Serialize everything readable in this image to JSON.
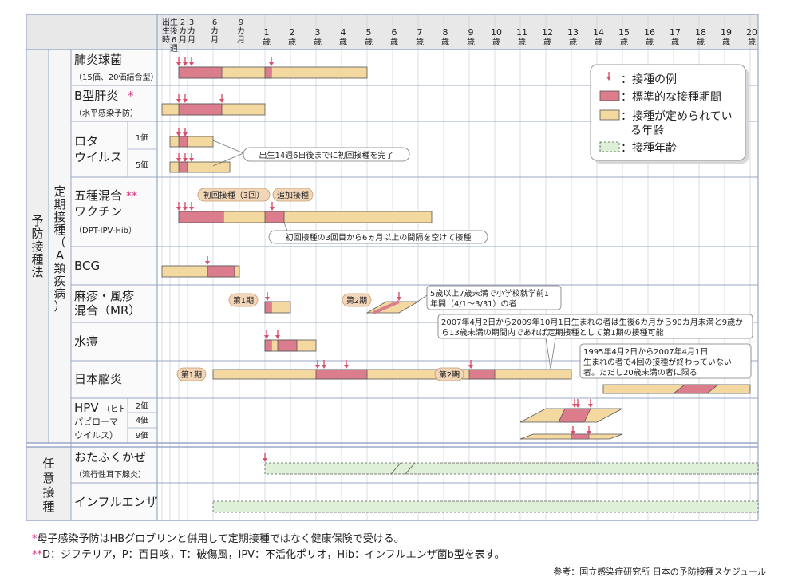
{
  "header": {
    "ages": [
      {
        "label": "出生時",
        "col": "birth"
      },
      {
        "label": "生後6週",
        "col": "w6"
      },
      {
        "label": "2カ月",
        "col": "m2"
      },
      {
        "label": "3カ月",
        "col": "m3"
      },
      {
        "label": "6カ月",
        "col": "m6"
      },
      {
        "label": "9カ月",
        "col": "m9"
      },
      {
        "label": "1歳",
        "col": "y1"
      },
      {
        "label": "2歳",
        "col": "y2"
      },
      {
        "label": "3歳",
        "col": "y3"
      },
      {
        "label": "4歳",
        "col": "y4"
      },
      {
        "label": "5歳",
        "col": "y5"
      },
      {
        "label": "6歳",
        "col": "y6"
      },
      {
        "label": "7歳",
        "col": "y7"
      },
      {
        "label": "8歳",
        "col": "y8"
      },
      {
        "label": "9歳",
        "col": "y9"
      },
      {
        "label": "10歳",
        "col": "y10"
      },
      {
        "label": "11歳",
        "col": "y11"
      },
      {
        "label": "12歳",
        "col": "y12"
      },
      {
        "label": "13歳",
        "col": "y13"
      },
      {
        "label": "14歳",
        "col": "y14"
      },
      {
        "label": "15歳",
        "col": "y15"
      },
      {
        "label": "16歳",
        "col": "y16"
      },
      {
        "label": "17歳",
        "col": "y17"
      },
      {
        "label": "18歳",
        "col": "y18"
      },
      {
        "label": "19歳",
        "col": "y19"
      },
      {
        "label": "20歳",
        "col": "y20"
      }
    ]
  },
  "groups": {
    "law": "予防接種法",
    "routine": "定期接種（A類疾病）",
    "voluntary": "任意接種"
  },
  "rows": {
    "pneumo": {
      "name": "肺炎球菌",
      "sub": "（15価、20価結合型）"
    },
    "hepb": {
      "name": "B型肝炎",
      "star": "*",
      "sub": "（水平感染予防）"
    },
    "rota": {
      "name": "ロタ\nウイルス",
      "sub1": "1価",
      "sub2": "5価"
    },
    "penta": {
      "name": "五種混合\nワクチン",
      "star": "**",
      "sub": "（DPT-IPV-Hib）"
    },
    "bcg": {
      "name": "BCG"
    },
    "mr": {
      "name": "麻疹・風疹\n混合（MR）"
    },
    "varicella": {
      "name": "水痘"
    },
    "je": {
      "name": "日本脳炎"
    },
    "hpv": {
      "name": "HPV",
      "name_small": "（ヒト",
      "name2": "パピローマ",
      "name3": "ウイルス）",
      "sub1": "2価",
      "sub2": "4価",
      "sub3": "9価"
    },
    "mumps": {
      "name": "おたふくかぜ",
      "sub": "（流行性耳下腺炎）"
    },
    "flu": {
      "name": "インフルエンザ"
    }
  },
  "legend": {
    "arrow": "：接種の例",
    "standard": "：標準的な接種期間",
    "defined": "：接種が定められている年齢",
    "age": "：接種年齢"
  },
  "callouts": {
    "rota": "出生14週6日後までに初回接種を完了",
    "penta_initial": "初回接種（3回）",
    "penta_booster": "追加接種",
    "penta_note": "初回接種の3回目から6ヵ月以上の間隔を空けて接種",
    "mr_dose1": "第1期",
    "mr_dose2": "第2期",
    "mr_note": "5歳以上7歳未満で小学校就学前1年間（4/1～3/31）の者",
    "je_note1": "2007年4月2日から2009年10月1日生まれの者は生後6カ月から90カ月未満と9歳から13歳未満の期間内であれば定期接種として第1期の接種可能",
    "je_dose1": "第1期",
    "je_dose2": "第2期",
    "je_note2": "1995年4月2日から2007年4月1日生まれの者で4回の接種が終わっていない者。ただし20歳未満の者に限る"
  },
  "footnotes": {
    "note1_mark": "*",
    "note1": "母子感染予防はHBグロブリンと併用して定期接種ではなく健康保険で受ける。",
    "note2_mark": "**",
    "note2": "D：ジフテリア，P：百日咳，T：破傷風，IPV：不活化ポリオ，Hib：インフルエンザ菌b型を表す。",
    "source": "参考：国立感染症研究所 日本の予防接種スケジュール"
  },
  "colors": {
    "arrow": "#d94f6a",
    "standard": "#db7d8c",
    "defined": "#f3d8a0",
    "age_fill": "#dff0d8",
    "row_band": "#f7f7f7",
    "header_bg": "#e8e8e8",
    "grid": "#9aa7c7",
    "callout_bg": "#fbe3cf",
    "callout_stroke": "#c89a6e",
    "label_bg": "#f2d6b8"
  }
}
